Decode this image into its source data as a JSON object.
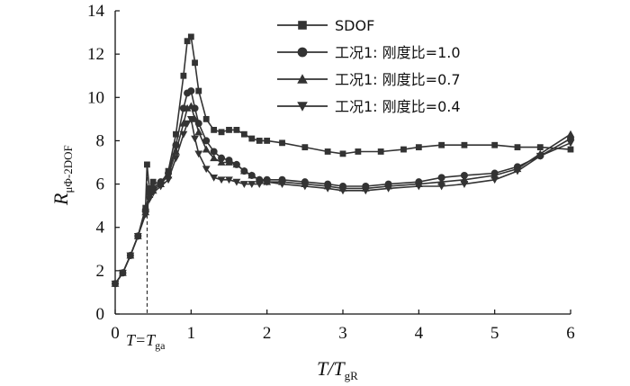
{
  "chart_data": {
    "type": "line",
    "xlabel": {
      "main": "T/T",
      "sub": "gR"
    },
    "ylabel": {
      "main": "R",
      "sub": "μΦ-2DOF"
    },
    "xlim": [
      0,
      6
    ],
    "ylim": [
      0,
      14
    ],
    "xticks": [
      "0",
      "1",
      "2",
      "3",
      "4",
      "5",
      "6"
    ],
    "yticks": [
      "0",
      "2",
      "4",
      "6",
      "8",
      "10",
      "12",
      "14"
    ],
    "grid": false,
    "legend_position": "top-right",
    "annotation": {
      "main": "T=T",
      "sub": "ga",
      "x": 0.42
    },
    "series": [
      {
        "name": "SDOF",
        "marker": "square",
        "x": [
          0,
          0.1,
          0.2,
          0.3,
          0.4,
          0.42,
          0.45,
          0.5,
          0.6,
          0.7,
          0.8,
          0.9,
          0.95,
          1.0,
          1.05,
          1.1,
          1.2,
          1.3,
          1.4,
          1.5,
          1.6,
          1.7,
          1.8,
          1.9,
          2.0,
          2.2,
          2.5,
          2.8,
          3.0,
          3.2,
          3.5,
          3.8,
          4.0,
          4.3,
          4.6,
          5.0,
          5.3,
          5.6,
          6.0
        ],
        "values": [
          1.4,
          1.9,
          2.7,
          3.6,
          4.9,
          6.9,
          5.8,
          6.1,
          6.0,
          6.6,
          8.3,
          11.0,
          12.6,
          12.8,
          11.6,
          10.3,
          9.0,
          8.5,
          8.4,
          8.5,
          8.5,
          8.3,
          8.1,
          8.0,
          8.0,
          7.9,
          7.7,
          7.5,
          7.4,
          7.5,
          7.5,
          7.6,
          7.7,
          7.8,
          7.8,
          7.8,
          7.7,
          7.7,
          7.6
        ]
      },
      {
        "name": "工况1: 刚度比=1.0",
        "marker": "circle",
        "x": [
          0,
          0.1,
          0.2,
          0.3,
          0.4,
          0.45,
          0.5,
          0.6,
          0.7,
          0.8,
          0.9,
          0.95,
          1.0,
          1.05,
          1.1,
          1.2,
          1.3,
          1.4,
          1.5,
          1.6,
          1.7,
          1.8,
          1.9,
          2.0,
          2.2,
          2.5,
          2.8,
          3.0,
          3.3,
          3.6,
          4.0,
          4.3,
          4.6,
          5.0,
          5.3,
          5.6,
          6.0
        ],
        "values": [
          1.4,
          1.9,
          2.7,
          3.6,
          4.8,
          5.6,
          5.8,
          6.1,
          6.5,
          7.8,
          9.5,
          10.2,
          10.3,
          9.5,
          8.8,
          8.0,
          7.5,
          7.2,
          7.1,
          6.9,
          6.6,
          6.4,
          6.2,
          6.2,
          6.2,
          6.1,
          6.0,
          5.9,
          5.9,
          6.0,
          6.1,
          6.3,
          6.4,
          6.5,
          6.8,
          7.3,
          8.1
        ]
      },
      {
        "name": "工况1: 刚度比=0.7",
        "marker": "triangle-up",
        "x": [
          0,
          0.1,
          0.2,
          0.3,
          0.4,
          0.45,
          0.5,
          0.6,
          0.7,
          0.8,
          0.9,
          0.95,
          1.0,
          1.05,
          1.1,
          1.2,
          1.3,
          1.4,
          1.5,
          1.6,
          1.7,
          1.8,
          1.9,
          2.0,
          2.2,
          2.5,
          2.8,
          3.0,
          3.3,
          3.6,
          4.0,
          4.3,
          4.6,
          5.0,
          5.3,
          5.6,
          6.0
        ],
        "values": [
          1.4,
          1.9,
          2.7,
          3.6,
          4.7,
          5.5,
          5.7,
          6.0,
          6.4,
          7.5,
          8.8,
          9.5,
          9.6,
          9.0,
          8.4,
          7.6,
          7.2,
          7.0,
          7.0,
          6.9,
          6.6,
          6.4,
          6.2,
          6.1,
          6.1,
          6.0,
          5.9,
          5.8,
          5.8,
          5.9,
          6.0,
          6.1,
          6.2,
          6.4,
          6.7,
          7.4,
          8.3
        ]
      },
      {
        "name": "工况1: 刚度比=0.4",
        "marker": "triangle-down",
        "x": [
          0,
          0.1,
          0.2,
          0.3,
          0.4,
          0.45,
          0.5,
          0.6,
          0.7,
          0.8,
          0.9,
          0.95,
          1.0,
          1.05,
          1.1,
          1.2,
          1.3,
          1.4,
          1.5,
          1.6,
          1.7,
          1.8,
          1.9,
          2.0,
          2.2,
          2.5,
          2.8,
          3.0,
          3.3,
          3.6,
          4.0,
          4.3,
          4.6,
          5.0,
          5.3,
          5.6,
          6.0
        ],
        "values": [
          1.4,
          1.9,
          2.7,
          3.6,
          4.6,
          5.3,
          5.6,
          5.9,
          6.2,
          7.2,
          8.3,
          8.8,
          9.0,
          8.1,
          7.4,
          6.7,
          6.3,
          6.2,
          6.2,
          6.1,
          6.0,
          6.0,
          6.0,
          6.1,
          6.0,
          5.9,
          5.8,
          5.7,
          5.7,
          5.8,
          5.9,
          5.9,
          6.0,
          6.2,
          6.6,
          7.3,
          7.9
        ]
      }
    ]
  }
}
